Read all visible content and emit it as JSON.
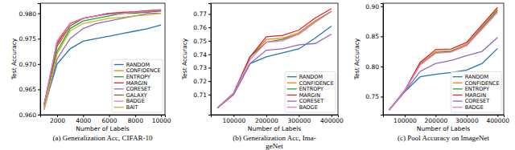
{
  "chart_data": [
    {
      "type": "line",
      "title": [
        "(a) Generalization Acc, CIFAR-10"
      ],
      "x_label": "Number of Labels",
      "y_label": "Test Accuracy",
      "x": [
        1000,
        2000,
        3000,
        4000,
        5000,
        6000,
        7000,
        8000,
        9000,
        10000
      ],
      "xlim": [
        700,
        10300
      ],
      "xticks": [
        2000,
        4000,
        6000,
        8000,
        10000
      ],
      "ylim": [
        0.96,
        0.982
      ],
      "yticks": [
        {
          "value": 0.96,
          "label": "0.960"
        },
        0.965,
        {
          "value": 0.97,
          "label": "0.970"
        },
        0.975,
        {
          "value": 0.98,
          "label": "0.980"
        }
      ],
      "legend": "lower right",
      "series": [
        {
          "name": "RANDOM",
          "color": "#1f77b4",
          "values": [
            0.9615,
            0.97,
            0.973,
            0.9745,
            0.975,
            0.9755,
            0.976,
            0.9765,
            0.977,
            0.9777
          ]
        },
        {
          "name": "CONFIDENCE",
          "color": "#ff7f0e",
          "values": [
            0.962,
            0.9745,
            0.978,
            0.979,
            0.9795,
            0.98,
            0.98,
            0.9802,
            0.9805,
            0.9806
          ]
        },
        {
          "name": "ENTROPY",
          "color": "#2ca02c",
          "values": [
            0.962,
            0.9725,
            0.977,
            0.9785,
            0.979,
            0.9795,
            0.98,
            0.98,
            0.9803,
            0.9805
          ]
        },
        {
          "name": "MARGIN",
          "color": "#d62728",
          "values": [
            0.962,
            0.974,
            0.978,
            0.979,
            0.9795,
            0.98,
            0.9802,
            0.9803,
            0.9805,
            0.9807
          ]
        },
        {
          "name": "CORESET",
          "color": "#9467bd",
          "values": [
            0.961,
            0.971,
            0.975,
            0.977,
            0.978,
            0.9785,
            0.979,
            0.9795,
            0.98,
            0.98
          ]
        },
        {
          "name": "GALAXY",
          "color": "#8c564b",
          "values": [
            0.962,
            0.9735,
            0.9775,
            0.979,
            0.9795,
            0.98,
            0.98,
            0.9802,
            0.9803,
            0.9805
          ]
        },
        {
          "name": "BADGE",
          "color": "#e377c2",
          "values": [
            0.962,
            0.9745,
            0.978,
            0.979,
            0.9795,
            0.9798,
            0.98,
            0.9802,
            0.9804,
            0.9806
          ]
        },
        {
          "name": "BAIT",
          "color": "#bcbd22",
          "values": [
            0.961,
            0.972,
            0.9765,
            0.978,
            0.9785,
            0.979,
            0.9792,
            0.9795,
            0.9797,
            0.98
          ]
        }
      ]
    },
    {
      "type": "line",
      "title": [
        "(b) Generalization Acc, Ima-",
        "geNet"
      ],
      "x_label": "Number of Labels",
      "y_label": "Test Accuracy",
      "x": [
        50000,
        100000,
        150000,
        200000,
        250000,
        300000,
        350000,
        400000
      ],
      "xlim": [
        30000,
        420000
      ],
      "xticks": [
        100000,
        200000,
        300000,
        400000
      ],
      "ylim": [
        0.695,
        0.778
      ],
      "yticks": [
        0.71,
        0.72,
        0.73,
        0.74,
        0.75,
        0.76,
        0.77
      ],
      "legend": "lower right",
      "series": [
        {
          "name": "RANDOM",
          "color": "#1f77b4",
          "values": [
            0.7,
            0.71,
            0.733,
            0.738,
            0.741,
            0.744,
            0.752,
            0.761
          ]
        },
        {
          "name": "CONFIDENCE",
          "color": "#ff7f0e",
          "values": [
            0.7,
            0.711,
            0.738,
            0.751,
            0.752,
            0.756,
            0.765,
            0.772
          ]
        },
        {
          "name": "ENTROPY",
          "color": "#2ca02c",
          "values": [
            0.7,
            0.711,
            0.738,
            0.749,
            0.751,
            0.755,
            0.764,
            0.772
          ]
        },
        {
          "name": "MARGIN",
          "color": "#d62728",
          "values": [
            0.7,
            0.711,
            0.738,
            0.753,
            0.754,
            0.758,
            0.767,
            0.774
          ]
        },
        {
          "name": "CORESET",
          "color": "#9467bd",
          "values": [
            0.7,
            0.71,
            0.733,
            0.743,
            0.744,
            0.747,
            0.748,
            0.755
          ]
        },
        {
          "name": "BADGE",
          "color": "#e377c2",
          "values": [
            0.7,
            0.711,
            0.736,
            0.749,
            0.75,
            0.755,
            0.764,
            0.772
          ]
        }
      ]
    },
    {
      "type": "line",
      "title": [
        "(c) Pool Accuracy on ImageNet"
      ],
      "x_label": "Number of Labels",
      "y_label": "Test Accuracy",
      "x": [
        50000,
        100000,
        150000,
        200000,
        250000,
        300000,
        350000,
        400000
      ],
      "xlim": [
        30000,
        420000
      ],
      "xticks": [
        100000,
        200000,
        300000,
        400000
      ],
      "ylim": [
        0.72,
        0.905
      ],
      "yticks": [
        0.75,
        {
          "value": 0.8,
          "label": "0.80"
        },
        0.85,
        {
          "value": 0.9,
          "label": "0.90"
        }
      ],
      "legend": "lower right",
      "series": [
        {
          "name": "RANDOM",
          "color": "#1f77b4",
          "values": [
            0.728,
            0.758,
            0.783,
            0.787,
            0.79,
            0.794,
            0.805,
            0.83
          ]
        },
        {
          "name": "CONFIDENCE",
          "color": "#ff7f0e",
          "values": [
            0.728,
            0.76,
            0.805,
            0.825,
            0.826,
            0.837,
            0.866,
            0.895
          ]
        },
        {
          "name": "ENTROPY",
          "color": "#2ca02c",
          "values": [
            0.728,
            0.76,
            0.803,
            0.823,
            0.825,
            0.835,
            0.864,
            0.893
          ]
        },
        {
          "name": "MARGIN",
          "color": "#d62728",
          "values": [
            0.728,
            0.76,
            0.807,
            0.828,
            0.829,
            0.84,
            0.869,
            0.898
          ]
        },
        {
          "name": "CORESET",
          "color": "#9467bd",
          "values": [
            0.728,
            0.758,
            0.792,
            0.805,
            0.81,
            0.818,
            0.825,
            0.848
          ]
        },
        {
          "name": "BADGE",
          "color": "#e377c2",
          "values": [
            0.728,
            0.76,
            0.803,
            0.822,
            0.824,
            0.835,
            0.862,
            0.89
          ]
        }
      ]
    }
  ]
}
